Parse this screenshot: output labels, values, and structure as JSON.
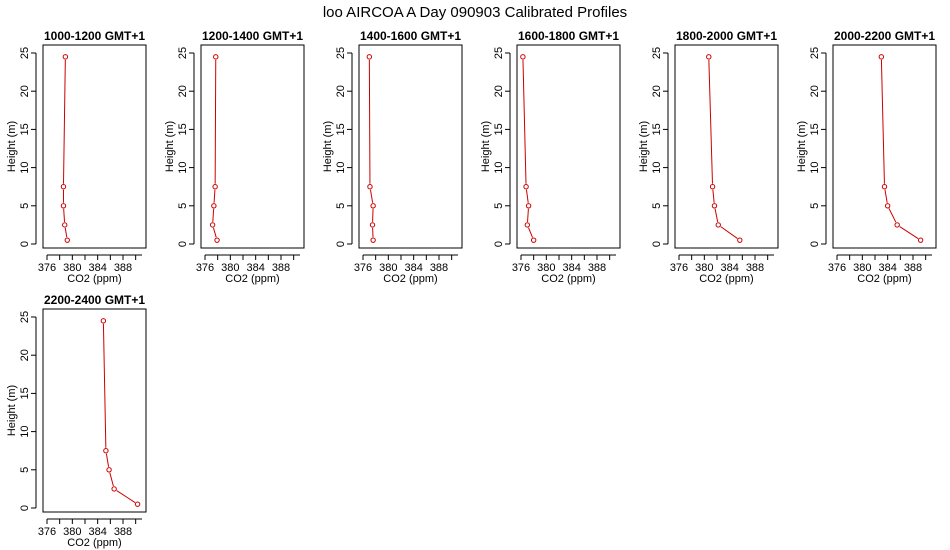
{
  "page_title": "loo AIRCOA A  Day 090903  Calibrated Profiles",
  "colors": {
    "series": "#cc0000",
    "axes": "#000000",
    "background": "#ffffff"
  },
  "chart_data": [
    {
      "type": "line",
      "title": "1000-1200 GMT+1",
      "xlabel": "CO2 (ppm)",
      "ylabel": "Height (m)",
      "xlim": [
        376,
        391
      ],
      "ylim": [
        0,
        25
      ],
      "xticks": [
        376,
        380,
        384,
        388
      ],
      "yticks": [
        0,
        5,
        10,
        15,
        20,
        25
      ],
      "grid": false,
      "series": [
        {
          "x": [
            379.2,
            378.8,
            378.6,
            378.6,
            378.9
          ],
          "y": [
            0.5,
            2.5,
            5,
            7.5,
            24.5
          ]
        }
      ]
    },
    {
      "type": "line",
      "title": "1200-1400 GMT+1",
      "xlabel": "CO2 (ppm)",
      "ylabel": "Height (m)",
      "xlim": [
        376,
        391
      ],
      "ylim": [
        0,
        25
      ],
      "xticks": [
        376,
        380,
        384,
        388
      ],
      "yticks": [
        0,
        5,
        10,
        15,
        20,
        25
      ],
      "grid": false,
      "series": [
        {
          "x": [
            377.9,
            377.2,
            377.4,
            377.6,
            377.7
          ],
          "y": [
            0.5,
            2.5,
            5,
            7.5,
            24.5
          ]
        }
      ]
    },
    {
      "type": "line",
      "title": "1400-1600 GMT+1",
      "xlabel": "CO2 (ppm)",
      "ylabel": "Height (m)",
      "xlim": [
        376,
        391
      ],
      "ylim": [
        0,
        25
      ],
      "xticks": [
        376,
        380,
        384,
        388
      ],
      "yticks": [
        0,
        5,
        10,
        15,
        20,
        25
      ],
      "grid": false,
      "series": [
        {
          "x": [
            377.6,
            377.5,
            377.6,
            377.1,
            377.0
          ],
          "y": [
            0.5,
            2.5,
            5,
            7.5,
            24.5
          ]
        }
      ]
    },
    {
      "type": "line",
      "title": "1600-1800 GMT+1",
      "xlabel": "CO2 (ppm)",
      "ylabel": "Height (m)",
      "xlim": [
        376,
        391
      ],
      "ylim": [
        0,
        25
      ],
      "xticks": [
        376,
        380,
        384,
        388
      ],
      "yticks": [
        0,
        5,
        10,
        15,
        20,
        25
      ],
      "grid": false,
      "series": [
        {
          "x": [
            378.0,
            377.0,
            377.2,
            376.8,
            376.3
          ],
          "y": [
            0.5,
            2.5,
            5,
            7.5,
            24.5
          ]
        }
      ]
    },
    {
      "type": "line",
      "title": "1800-2000 GMT+1",
      "xlabel": "CO2 (ppm)",
      "ylabel": "Height (m)",
      "xlim": [
        376,
        391
      ],
      "ylim": [
        0,
        25
      ],
      "xticks": [
        376,
        380,
        384,
        388
      ],
      "yticks": [
        0,
        5,
        10,
        15,
        20,
        25
      ],
      "grid": false,
      "series": [
        {
          "x": [
            385.6,
            382.2,
            381.6,
            381.3,
            380.7
          ],
          "y": [
            0.5,
            2.5,
            5,
            7.5,
            24.5
          ]
        }
      ]
    },
    {
      "type": "line",
      "title": "2000-2200 GMT+1",
      "xlabel": "CO2 (ppm)",
      "ylabel": "Height (m)",
      "xlim": [
        376,
        391
      ],
      "ylim": [
        0,
        25
      ],
      "xticks": [
        376,
        380,
        384,
        388
      ],
      "yticks": [
        0,
        5,
        10,
        15,
        20,
        25
      ],
      "grid": false,
      "series": [
        {
          "x": [
            389.2,
            385.5,
            384.0,
            383.5,
            383.0
          ],
          "y": [
            0.5,
            2.5,
            5,
            7.5,
            24.5
          ]
        }
      ]
    },
    {
      "type": "line",
      "title": "2200-2400 GMT+1",
      "xlabel": "CO2 (ppm)",
      "ylabel": "Height (m)",
      "xlim": [
        376,
        391
      ],
      "ylim": [
        0,
        25
      ],
      "xticks": [
        376,
        380,
        384,
        388
      ],
      "yticks": [
        0,
        5,
        10,
        15,
        20,
        25
      ],
      "grid": false,
      "series": [
        {
          "x": [
            390.3,
            386.6,
            385.8,
            385.3,
            384.9
          ],
          "y": [
            0.5,
            2.5,
            5,
            7.5,
            24.5
          ]
        }
      ]
    }
  ]
}
